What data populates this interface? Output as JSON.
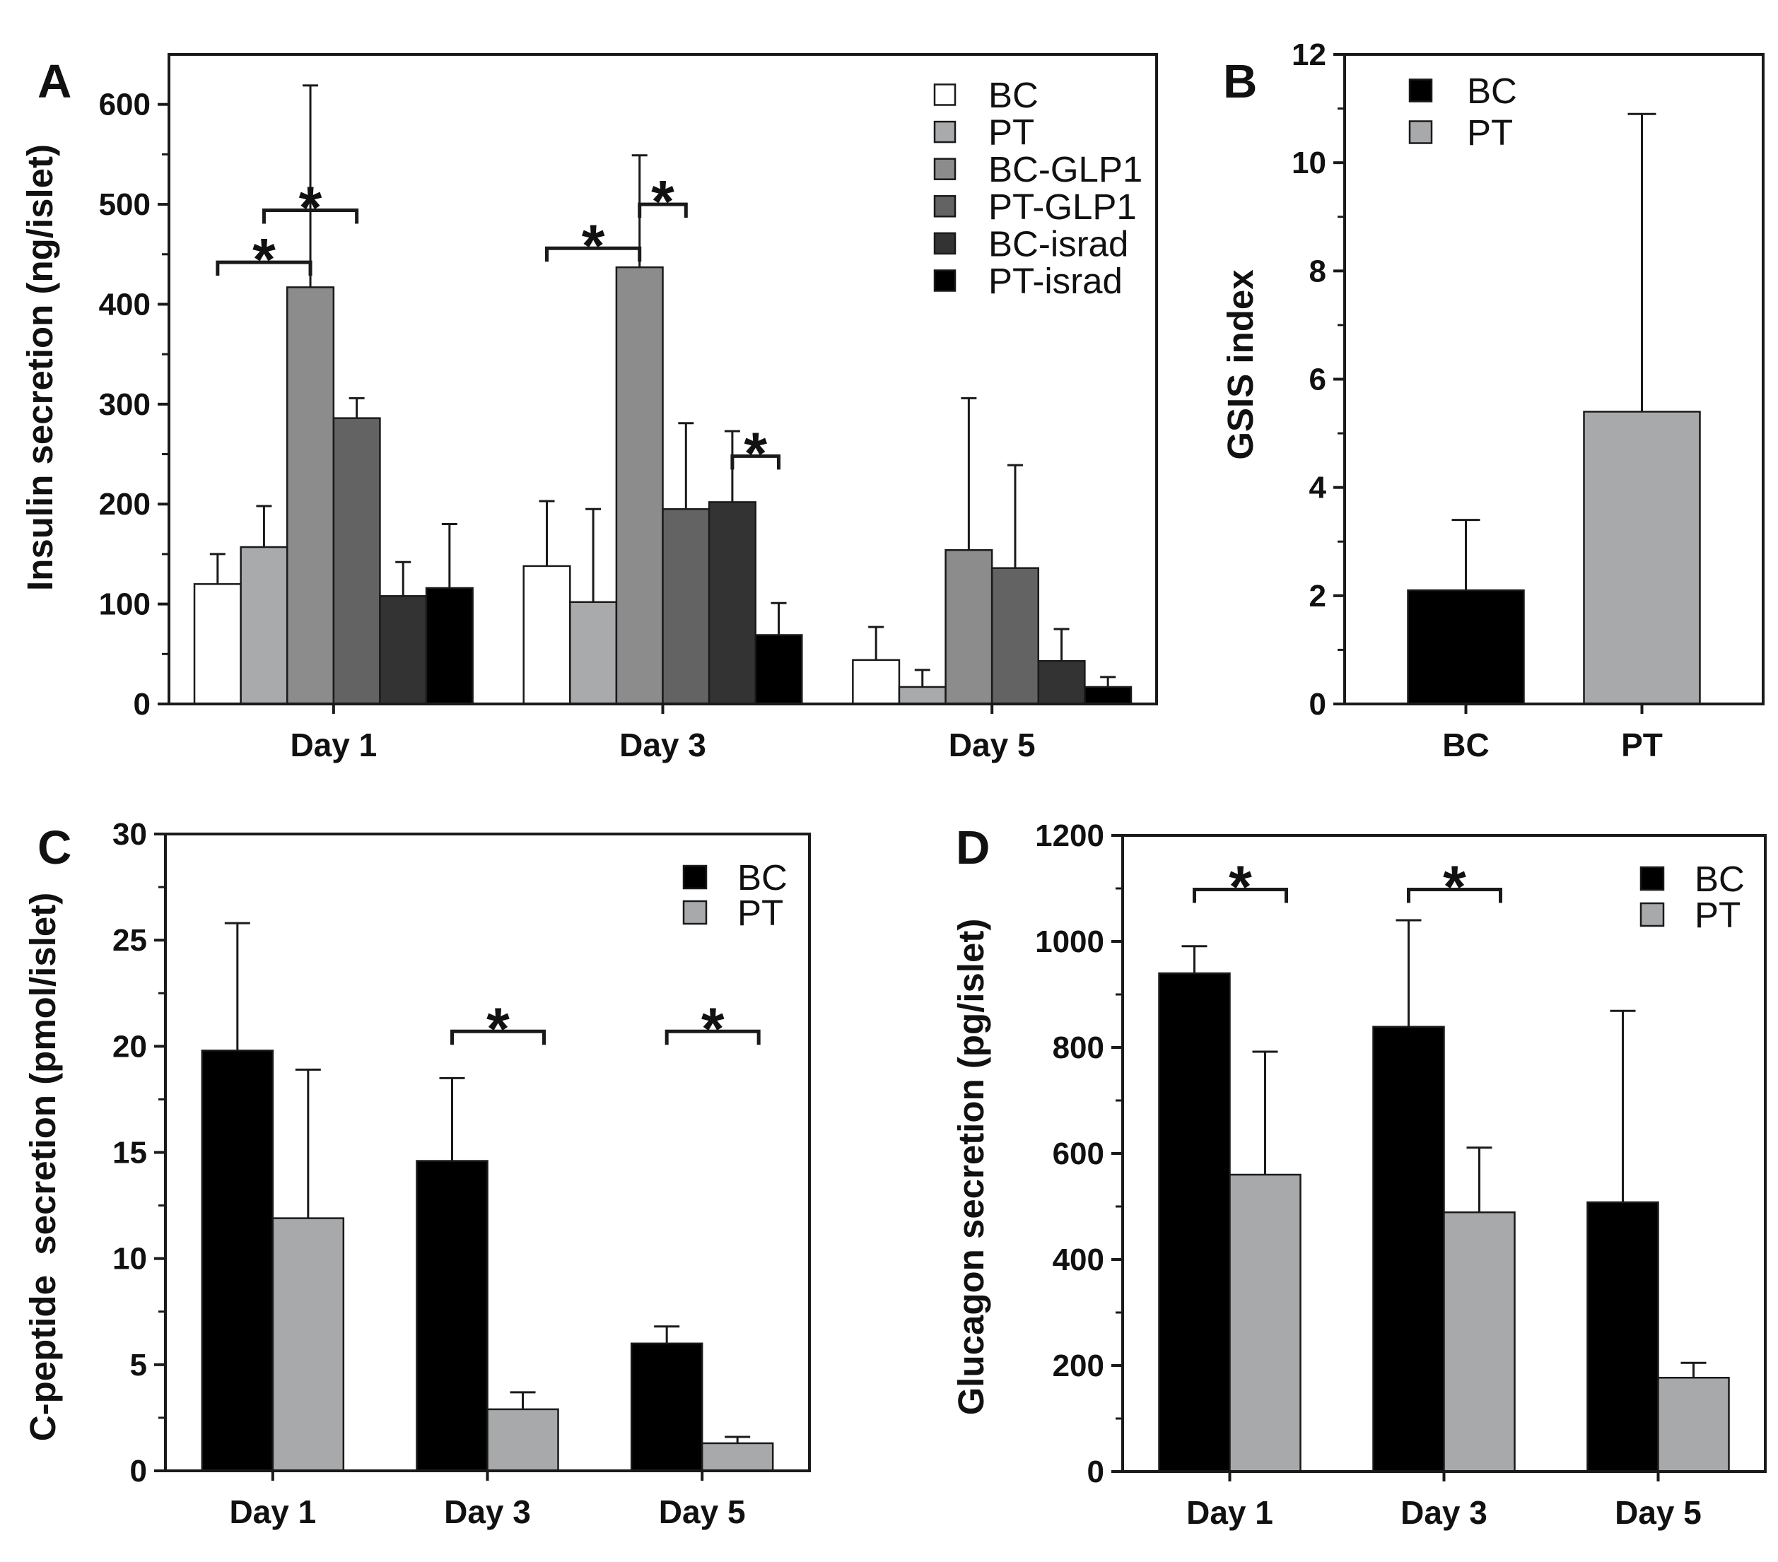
{
  "chart_data": [
    {
      "panel": "A",
      "type": "bar",
      "title": "",
      "xlabel": "",
      "ylabel": "Insulin secretion (ng/islet)",
      "ylim": [
        0,
        650
      ],
      "yticks": [
        0,
        100,
        200,
        300,
        400,
        500,
        600
      ],
      "grid": false,
      "legend": "top-right",
      "categories": [
        "Day 1",
        "Day 3",
        "Day 5"
      ],
      "series": [
        {
          "name": "BC",
          "color": "#ffffff",
          "values": [
            120,
            138,
            44
          ],
          "error_top": [
            150,
            203,
            77
          ]
        },
        {
          "name": "PT",
          "color": "#a9aaac",
          "values": [
            157,
            102,
            17
          ],
          "error_top": [
            198,
            195,
            34
          ]
        },
        {
          "name": "BC-GLP1",
          "color": "#8c8c8c",
          "values": [
            417,
            437,
            154
          ],
          "error_top": [
            619,
            549,
            306
          ]
        },
        {
          "name": "PT-GLP1",
          "color": "#636363",
          "values": [
            286,
            195,
            136
          ],
          "error_top": [
            306,
            281,
            239
          ]
        },
        {
          "name": "BC-israd",
          "color": "#333333",
          "values": [
            108,
            202,
            43
          ],
          "error_top": [
            142,
            273,
            75
          ]
        },
        {
          "name": "PT-israd",
          "color": "#000000",
          "values": [
            116,
            69,
            17
          ],
          "error_top": [
            180,
            101,
            27
          ]
        }
      ],
      "annotations": [
        {
          "text": "*",
          "category": 0,
          "from_series": 0,
          "to_series": 2,
          "y": 442
        },
        {
          "text": "*",
          "category": 0,
          "from_series": 1,
          "to_series": 3,
          "y": 494
        },
        {
          "text": "*",
          "category": 1,
          "from_series": 0,
          "to_series": 2,
          "y": 456
        },
        {
          "text": "*",
          "category": 1,
          "from_series": 2,
          "to_series": 3,
          "y": 500
        },
        {
          "text": "*",
          "category": 1,
          "from_series": 4,
          "to_series": 5,
          "y": 248
        }
      ]
    },
    {
      "panel": "B",
      "type": "bar",
      "title": "",
      "xlabel": "",
      "ylabel": "GSIS index",
      "ylim": [
        0,
        12
      ],
      "yticks": [
        0,
        2,
        4,
        6,
        8,
        10,
        12
      ],
      "grid": false,
      "legend": "top-left",
      "categories": [
        "BC",
        "PT"
      ],
      "values": [
        2.1,
        5.4
      ],
      "error_top": [
        3.4,
        10.9
      ],
      "colors": [
        "#000000",
        "#a8a9ab"
      ],
      "annotations": []
    },
    {
      "panel": "C",
      "type": "bar",
      "title": "",
      "xlabel": "",
      "ylabel": "C-peptide  secretion (pmol/islet)",
      "ylim": [
        0,
        30
      ],
      "yticks": [
        0,
        5,
        10,
        15,
        20,
        25,
        30
      ],
      "grid": false,
      "legend": "top-right",
      "categories": [
        "Day 1",
        "Day 3",
        "Day 5"
      ],
      "series": [
        {
          "name": "BC",
          "color": "#000000",
          "values": [
            19.8,
            14.6,
            6.0
          ],
          "error_top": [
            25.8,
            18.5,
            6.8
          ]
        },
        {
          "name": "PT",
          "color": "#a8a9ab",
          "values": [
            11.9,
            2.9,
            1.3
          ],
          "error_top": [
            18.9,
            3.7,
            1.6
          ]
        }
      ],
      "annotations": [
        {
          "text": "*",
          "category": 1,
          "from_series": 0,
          "to_series": 1,
          "y": 20.7
        },
        {
          "text": "*",
          "category": 2,
          "from_series": 0,
          "to_series": 1,
          "y": 20.7
        }
      ]
    },
    {
      "panel": "D",
      "type": "bar",
      "title": "",
      "xlabel": "",
      "ylabel": "Glucagon secretion (pg/islet)",
      "ylim": [
        0,
        1200
      ],
      "yticks": [
        0,
        200,
        400,
        600,
        800,
        1000,
        1200
      ],
      "grid": false,
      "legend": "top-right",
      "categories": [
        "Day 1",
        "Day 3",
        "Day 5"
      ],
      "series": [
        {
          "name": "BC",
          "color": "#000000",
          "values": [
            940,
            839,
            508
          ],
          "error_top": [
            991,
            1040,
            869
          ]
        },
        {
          "name": "PT",
          "color": "#a8a9ab",
          "values": [
            560,
            489,
            177
          ],
          "error_top": [
            792,
            611,
            205
          ]
        }
      ],
      "annotations": [
        {
          "text": "*",
          "category": 0,
          "from_series": 0,
          "to_series": 1,
          "y": 1098
        },
        {
          "text": "*",
          "category": 1,
          "from_series": 0,
          "to_series": 1,
          "y": 1098
        }
      ]
    }
  ]
}
